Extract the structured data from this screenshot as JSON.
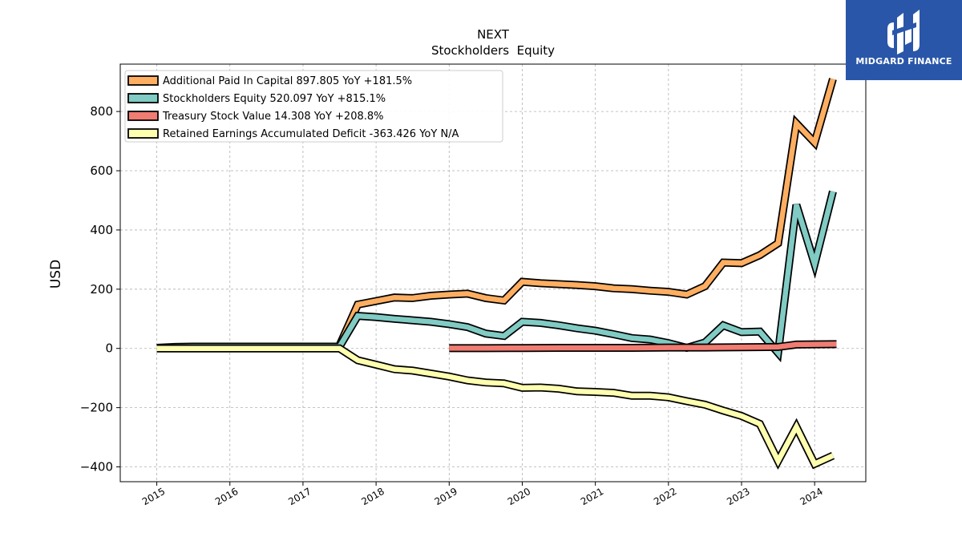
{
  "brand": {
    "name": "MIDGARD FINANCE",
    "bg_color": "#2a56a9"
  },
  "chart_data": {
    "type": "line",
    "title": "NEXT",
    "subtitle": "Stockholders  Equity",
    "ylabel": "USD",
    "xlabel": "",
    "ylim": [
      -450,
      960
    ],
    "xlim": [
      2014.5,
      2024.7
    ],
    "yticks": [
      -400,
      -200,
      0,
      200,
      400,
      600,
      800
    ],
    "ytick_labels": [
      "−400",
      "−200",
      "0",
      "200",
      "400",
      "600",
      "800"
    ],
    "xticks": [
      2015,
      2016,
      2017,
      2018,
      2019,
      2020,
      2021,
      2022,
      2023,
      2024
    ],
    "xtick_labels": [
      "2015",
      "2016",
      "2017",
      "2018",
      "2019",
      "2020",
      "2021",
      "2022",
      "2023",
      "2024"
    ],
    "grid": true,
    "legend_position": "top-left",
    "series": [
      {
        "name": "Additional Paid In Capital",
        "legend": "Additional Paid In Capital  897.805 YoY +181.5%",
        "color": "#fdae61",
        "x": [
          2017.5,
          2017.75,
          2018.0,
          2018.25,
          2018.5,
          2018.75,
          2019.0,
          2019.25,
          2019.5,
          2019.75,
          2020.0,
          2020.25,
          2020.5,
          2020.75,
          2021.0,
          2021.25,
          2021.5,
          2021.75,
          2022.0,
          2022.25,
          2022.5,
          2022.75,
          2023.0,
          2023.25,
          2023.5,
          2023.75,
          2024.0,
          2024.25
        ],
        "y": [
          10,
          148,
          160,
          172,
          170,
          178,
          182,
          185,
          170,
          162,
          225,
          220,
          217,
          214,
          210,
          203,
          200,
          195,
          191,
          182,
          210,
          290,
          288,
          315,
          355,
          760,
          695,
          910
        ]
      },
      {
        "name": "Stockholders Equity",
        "legend": "Stockholders Equity  520.097 YoY +815.1%",
        "color": "#80cbc4",
        "x": [
          2015.0,
          2015.25,
          2015.5,
          2015.75,
          2016.0,
          2016.25,
          2016.5,
          2016.75,
          2017.0,
          2017.25,
          2017.5,
          2017.75,
          2018.0,
          2018.25,
          2018.5,
          2018.75,
          2019.0,
          2019.25,
          2019.5,
          2019.75,
          2020.0,
          2020.25,
          2020.5,
          2020.75,
          2021.0,
          2021.25,
          2021.5,
          2021.75,
          2022.0,
          2022.25,
          2022.5,
          2022.75,
          2023.0,
          2023.25,
          2023.5,
          2023.75,
          2024.0,
          2024.25
        ],
        "y": [
          2,
          5,
          6,
          6,
          6,
          6,
          6,
          6,
          6,
          6,
          6,
          110,
          106,
          100,
          95,
          90,
          82,
          72,
          50,
          42,
          90,
          86,
          78,
          68,
          60,
          48,
          35,
          30,
          18,
          2,
          20,
          78,
          55,
          57,
          -15,
          485,
          285,
          530
        ]
      },
      {
        "name": "Treasury Stock Value",
        "legend": "Treasury Stock Value  14.308 YoY +208.8%",
        "color": "#f07c72",
        "x": [
          2019.0,
          2019.5,
          2020.0,
          2020.5,
          2021.0,
          2021.5,
          2022.0,
          2022.5,
          2023.0,
          2023.5,
          2023.75,
          2024.0,
          2024.3
        ],
        "y": [
          1,
          1,
          1.5,
          2,
          2,
          2,
          3,
          3,
          4,
          5,
          13,
          14,
          14.3
        ]
      },
      {
        "name": "Retained Earnings Accumulated Deficit",
        "legend": "Retained Earnings Accumulated Deficit  -363.426 YoY N/A",
        "color": "#ffffb0",
        "x": [
          2015.0,
          2015.25,
          2015.5,
          2015.75,
          2016.0,
          2016.25,
          2016.5,
          2016.75,
          2017.0,
          2017.25,
          2017.5,
          2017.75,
          2018.0,
          2018.25,
          2018.5,
          2018.75,
          2019.0,
          2019.25,
          2019.5,
          2019.75,
          2020.0,
          2020.25,
          2020.5,
          2020.75,
          2021.0,
          2021.25,
          2021.5,
          2021.75,
          2022.0,
          2022.25,
          2022.5,
          2022.75,
          2023.0,
          2023.25,
          2023.5,
          2023.75,
          2024.0,
          2024.25
        ],
        "y": [
          0,
          0,
          0,
          0,
          0,
          0,
          0,
          0,
          0,
          0,
          0,
          -40,
          -55,
          -70,
          -75,
          -85,
          -95,
          -108,
          -115,
          -118,
          -133,
          -132,
          -136,
          -145,
          -147,
          -150,
          -160,
          -160,
          -165,
          -178,
          -190,
          -210,
          -228,
          -255,
          -380,
          -265,
          -390,
          -362
        ]
      }
    ]
  }
}
